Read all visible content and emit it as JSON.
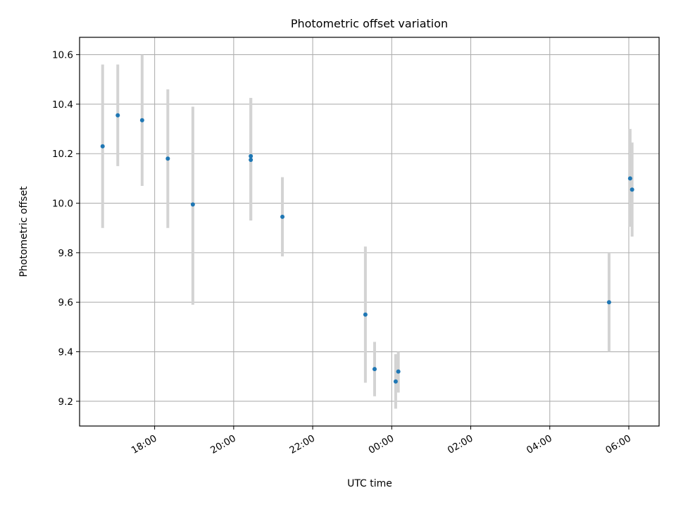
{
  "chart_data": {
    "type": "scatter",
    "title": "Photometric offset variation",
    "xlabel": "UTC time",
    "ylabel": "Photometric offset",
    "x_ticks": [
      "18:00",
      "20:00",
      "22:00",
      "00:00",
      "02:00",
      "04:00",
      "06:00"
    ],
    "y_ticks": [
      "9.2",
      "9.4",
      "9.6",
      "9.8",
      "10.0",
      "10.2",
      "10.4",
      "10.6"
    ],
    "xlim": [
      "16:06",
      "06:46"
    ],
    "ylim": [
      9.1,
      10.67
    ],
    "grid": true,
    "points": [
      {
        "x": "16:41",
        "y": 10.23,
        "yerr_low": 9.9,
        "yerr_high": 10.56
      },
      {
        "x": "17:04",
        "y": 10.355,
        "yerr_low": 10.15,
        "yerr_high": 10.56
      },
      {
        "x": "17:41",
        "y": 10.335,
        "yerr_low": 10.07,
        "yerr_high": 10.6
      },
      {
        "x": "18:20",
        "y": 10.18,
        "yerr_low": 9.9,
        "yerr_high": 10.46
      },
      {
        "x": "18:58",
        "y": 9.995,
        "yerr_low": 9.59,
        "yerr_high": 10.39
      },
      {
        "x": "20:26",
        "y": 10.19,
        "yerr_low": 9.93,
        "yerr_high": 10.425
      },
      {
        "x": "20:26",
        "y": 10.175,
        "yerr_low": 9.93,
        "yerr_high": 10.425
      },
      {
        "x": "21:14",
        "y": 9.945,
        "yerr_low": 9.785,
        "yerr_high": 10.105
      },
      {
        "x": "23:20",
        "y": 9.55,
        "yerr_low": 9.275,
        "yerr_high": 9.825
      },
      {
        "x": "23:34",
        "y": 9.33,
        "yerr_low": 9.22,
        "yerr_high": 9.44
      },
      {
        "x": "00:06",
        "y": 9.28,
        "yerr_low": 9.17,
        "yerr_high": 9.39
      },
      {
        "x": "00:10",
        "y": 9.32,
        "yerr_low": 9.235,
        "yerr_high": 9.4
      },
      {
        "x": "05:30",
        "y": 9.6,
        "yerr_low": 9.4,
        "yerr_high": 9.8
      },
      {
        "x": "06:02",
        "y": 10.1,
        "yerr_low": 9.905,
        "yerr_high": 10.3
      },
      {
        "x": "06:05",
        "y": 10.055,
        "yerr_low": 9.865,
        "yerr_high": 10.245
      }
    ],
    "colors": {
      "point": "#1f77b4",
      "errorbar": "#d3d3d3",
      "grid": "#b0b0b0"
    }
  }
}
